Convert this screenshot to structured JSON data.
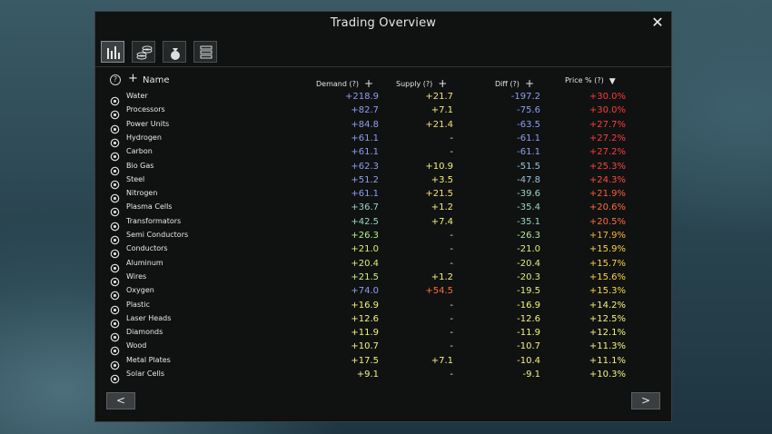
{
  "window": {
    "title": "Trading Overview",
    "close_label": "✕"
  },
  "tabs": [
    {
      "icon": "bar-chart-icon",
      "active": true
    },
    {
      "icon": "coins-stack-icon",
      "active": false
    },
    {
      "icon": "money-bag-icon",
      "active": false
    },
    {
      "icon": "credit-chips-icon",
      "active": false
    }
  ],
  "headers": {
    "help": "?",
    "add_name": "+",
    "name": "Name",
    "demand": "Demand (?)",
    "supply": "Supply (?)",
    "diff": "Diff (?)",
    "price": "Price % (?)",
    "plus": "+",
    "sort_desc": "▼"
  },
  "colors": {
    "blue": "#8f9df0",
    "green": "#b6f081",
    "yellow": "#f3f37d",
    "orange": "#ff6a38",
    "red": "#ff3838",
    "gray": "#e0e0e0",
    "teal": "#9ad3c4"
  },
  "rows": [
    {
      "name": "Water",
      "icon": "water-drop-icon",
      "demand": "+218.9",
      "demand_c": "#8f9df0",
      "supply": "+21.7",
      "supply_c": "#f6e07a",
      "diff": "-197.2",
      "diff_c": "#8f9df0",
      "price": "+30.0%",
      "price_c": "#ff3838"
    },
    {
      "name": "Processors",
      "icon": "processor-icon",
      "demand": "+82.7",
      "demand_c": "#8f9df0",
      "supply": "+7.1",
      "supply_c": "#f3f37d",
      "diff": "-75.6",
      "diff_c": "#8f9df0",
      "price": "+30.0%",
      "price_c": "#ff3838"
    },
    {
      "name": "Power Units",
      "icon": "power-unit-icon",
      "demand": "+84.8",
      "demand_c": "#8f9df0",
      "supply": "+21.4",
      "supply_c": "#f6e07a",
      "diff": "-63.5",
      "diff_c": "#8f9df0",
      "price": "+27.7%",
      "price_c": "#ff3b3b"
    },
    {
      "name": "Hydrogen",
      "icon": "hydrogen-icon",
      "demand": "+61.1",
      "demand_c": "#8f9df0",
      "supply": "-",
      "supply_c": "#e0e0e0",
      "diff": "-61.1",
      "diff_c": "#8f9df0",
      "price": "+27.2%",
      "price_c": "#ff3b3b"
    },
    {
      "name": "Carbon",
      "icon": "carbon-icon",
      "demand": "+61.1",
      "demand_c": "#8f9df0",
      "supply": "-",
      "supply_c": "#e0e0e0",
      "diff": "-61.1",
      "diff_c": "#8f9df0",
      "price": "+27.2%",
      "price_c": "#ff3b3b"
    },
    {
      "name": "Bio Gas",
      "icon": "bio-gas-icon",
      "demand": "+62.3",
      "demand_c": "#8f9df0",
      "supply": "+10.9",
      "supply_c": "#f3f37d",
      "diff": "-51.5",
      "diff_c": "#9ac0d8",
      "price": "+25.3%",
      "price_c": "#ff4040"
    },
    {
      "name": "Steel",
      "icon": "steel-icon",
      "demand": "+51.2",
      "demand_c": "#8f9df0",
      "supply": "+3.5",
      "supply_c": "#f3f37d",
      "diff": "-47.8",
      "diff_c": "#9ac0d8",
      "price": "+24.3%",
      "price_c": "#ff4a3a"
    },
    {
      "name": "Nitrogen",
      "icon": "nitrogen-icon",
      "demand": "+61.1",
      "demand_c": "#8f9df0",
      "supply": "+21.5",
      "supply_c": "#f6e07a",
      "diff": "-39.6",
      "diff_c": "#9ad3c4",
      "price": "+21.9%",
      "price_c": "#ff5a3a"
    },
    {
      "name": "Plasma Cells",
      "icon": "plasma-cells-icon",
      "demand": "+36.7",
      "demand_c": "#9ad3c4",
      "supply": "+1.2",
      "supply_c": "#f3f37d",
      "diff": "-35.4",
      "diff_c": "#9ad3c4",
      "price": "+20.6%",
      "price_c": "#ff6a38"
    },
    {
      "name": "Transformators",
      "icon": "transformator-icon",
      "demand": "+42.5",
      "demand_c": "#9ad3c4",
      "supply": "+7.4",
      "supply_c": "#f3f37d",
      "diff": "-35.1",
      "diff_c": "#9ad3c4",
      "price": "+20.5%",
      "price_c": "#ff6a38"
    },
    {
      "name": "Semi Conductors",
      "icon": "semi-conductor-icon",
      "demand": "+26.3",
      "demand_c": "#b6f081",
      "supply": "-",
      "supply_c": "#e0e0e0",
      "diff": "-26.3",
      "diff_c": "#b6e6a0",
      "price": "+17.9%",
      "price_c": "#ffb03a"
    },
    {
      "name": "Conductors",
      "icon": "conductor-icon",
      "demand": "+21.0",
      "demand_c": "#d6f07a",
      "supply": "-",
      "supply_c": "#e0e0e0",
      "diff": "-21.0",
      "diff_c": "#d6f07a",
      "price": "+15.9%",
      "price_c": "#ffd23a"
    },
    {
      "name": "Aluminum",
      "icon": "aluminum-icon",
      "demand": "+20.4",
      "demand_c": "#d6f07a",
      "supply": "-",
      "supply_c": "#e0e0e0",
      "diff": "-20.4",
      "diff_c": "#d6f07a",
      "price": "+15.7%",
      "price_c": "#ffd23a"
    },
    {
      "name": "Wires",
      "icon": "wires-icon",
      "demand": "+21.5",
      "demand_c": "#d6f07a",
      "supply": "+1.2",
      "supply_c": "#f3f37d",
      "diff": "-20.3",
      "diff_c": "#d6f07a",
      "price": "+15.6%",
      "price_c": "#ffd23a"
    },
    {
      "name": "Oxygen",
      "icon": "oxygen-icon",
      "demand": "+74.0",
      "demand_c": "#8f9df0",
      "supply": "+54.5",
      "supply_c": "#ff6a38",
      "diff": "-19.5",
      "diff_c": "#e6f07a",
      "price": "+15.3%",
      "price_c": "#ffd83a"
    },
    {
      "name": "Plastic",
      "icon": "plastic-icon",
      "demand": "+16.9",
      "demand_c": "#f3f37d",
      "supply": "-",
      "supply_c": "#e0e0e0",
      "diff": "-16.9",
      "diff_c": "#f3f37d",
      "price": "+14.2%",
      "price_c": "#f3f37d"
    },
    {
      "name": "Laser Heads",
      "icon": "laser-head-icon",
      "demand": "+12.6",
      "demand_c": "#f3f37d",
      "supply": "-",
      "supply_c": "#e0e0e0",
      "diff": "-12.6",
      "diff_c": "#f3f37d",
      "price": "+12.5%",
      "price_c": "#f3f37d"
    },
    {
      "name": "Diamonds",
      "icon": "diamond-icon",
      "demand": "+11.9",
      "demand_c": "#f3f37d",
      "supply": "-",
      "supply_c": "#e0e0e0",
      "diff": "-11.9",
      "diff_c": "#f3f37d",
      "price": "+12.1%",
      "price_c": "#f3f37d"
    },
    {
      "name": "Wood",
      "icon": "wood-icon",
      "demand": "+10.7",
      "demand_c": "#f3f37d",
      "supply": "-",
      "supply_c": "#e0e0e0",
      "diff": "-10.7",
      "diff_c": "#f3f37d",
      "price": "+11.3%",
      "price_c": "#f3f37d"
    },
    {
      "name": "Metal Plates",
      "icon": "metal-plates-icon",
      "demand": "+17.5",
      "demand_c": "#f3f37d",
      "supply": "+7.1",
      "supply_c": "#f3f37d",
      "diff": "-10.4",
      "diff_c": "#f3f37d",
      "price": "+11.1%",
      "price_c": "#f3f37d"
    },
    {
      "name": "Solar Cells",
      "icon": "solar-cells-icon",
      "demand": "+9.1",
      "demand_c": "#f3f37d",
      "supply": "-",
      "supply_c": "#e0e0e0",
      "diff": "-9.1",
      "diff_c": "#f3f37d",
      "price": "+10.3%",
      "price_c": "#f3f37d"
    }
  ],
  "pagination": {
    "prev_label": "<",
    "next_label": ">"
  }
}
